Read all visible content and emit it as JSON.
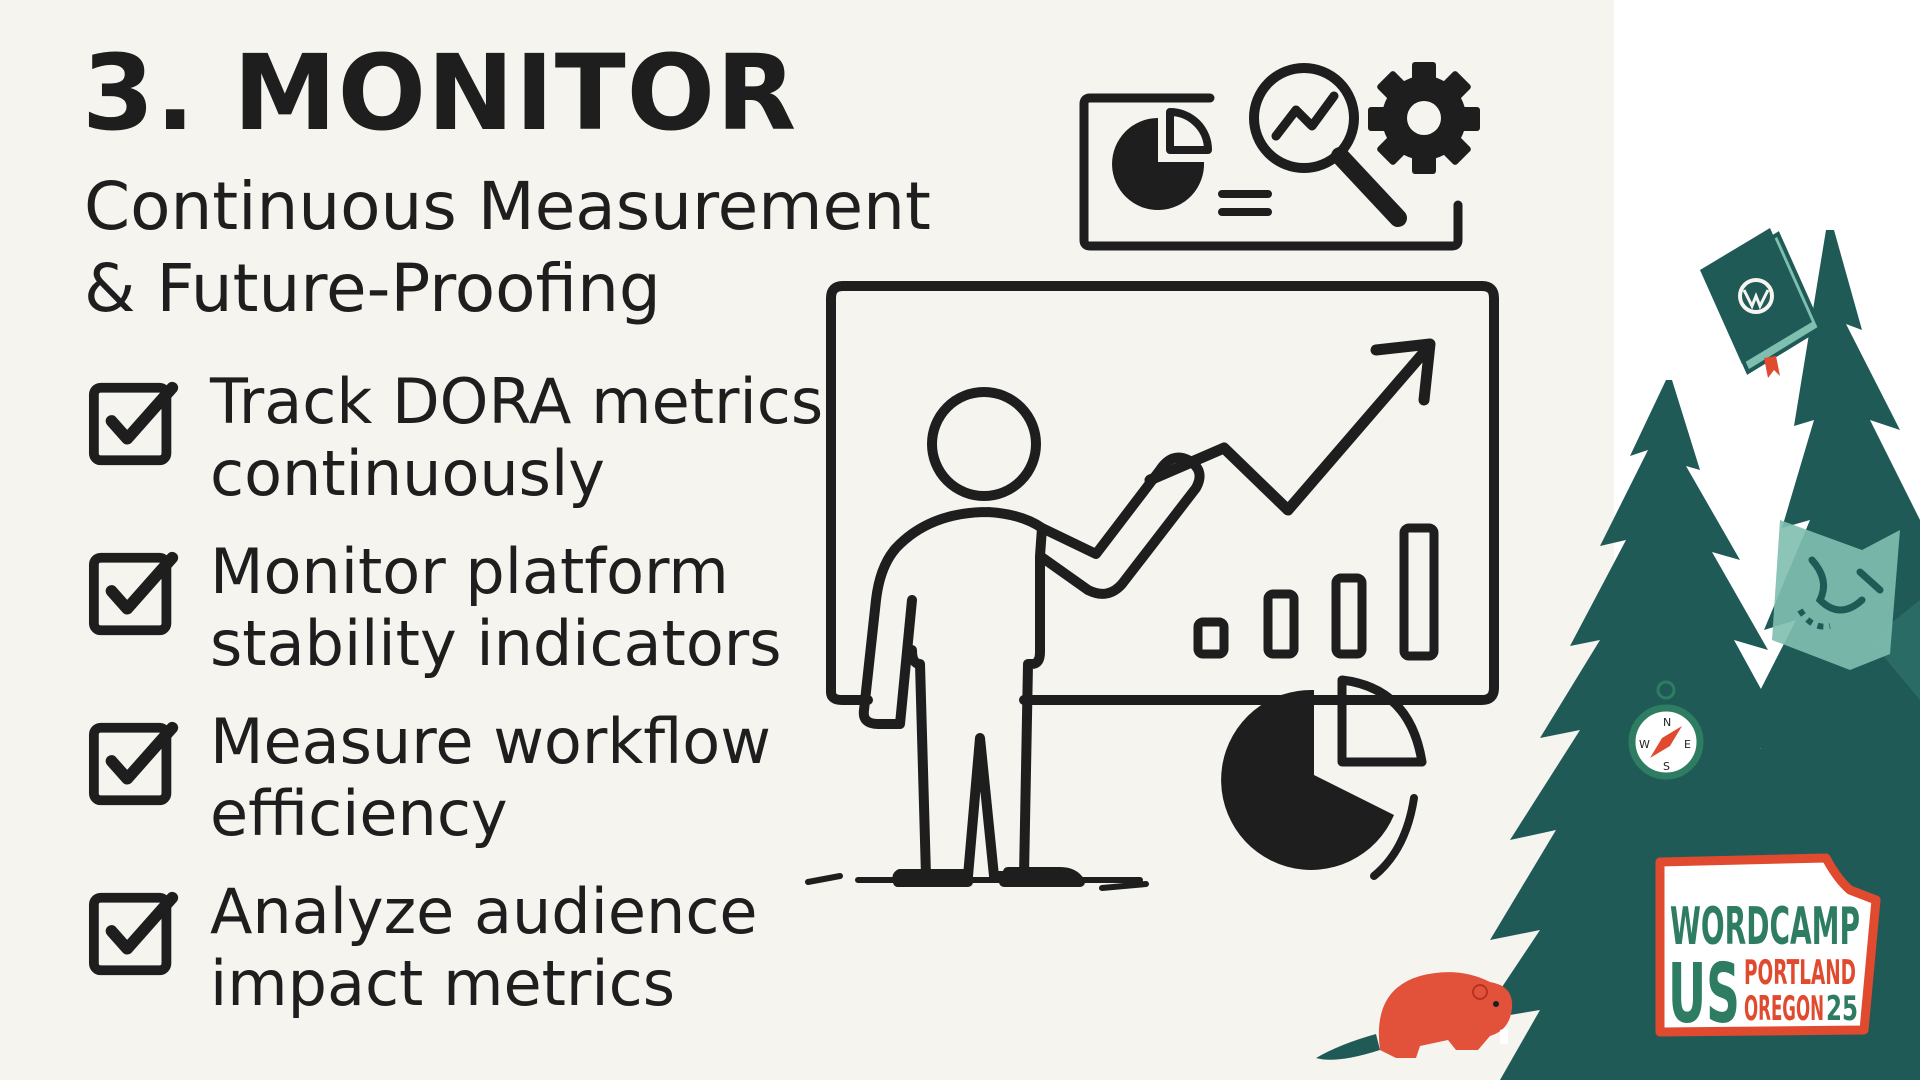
{
  "slide": {
    "title": "3. MONITOR",
    "subtitle_line1": "Continuous Measurement",
    "subtitle_line2": "& Future-Proofing"
  },
  "checklist": [
    {
      "line1": "Track DORA metrics",
      "line2": "continuously"
    },
    {
      "line1": "Monitor platform",
      "line2": "stability indicators"
    },
    {
      "line1": "Measure workflow",
      "line2": "efficiency"
    },
    {
      "line1": "Analyze audience",
      "line2": "impact metrics"
    }
  ],
  "badge": {
    "line1": "WORDCAMP",
    "us": "US",
    "city": "PORTLAND",
    "state": "OREGON",
    "year": "25"
  },
  "compass": {
    "n": "N",
    "e": "E",
    "s": "S",
    "w": "W"
  },
  "icons": [
    "dashboard-icon",
    "pie-chart-icon",
    "magnifier-trend-icon",
    "gear-icon",
    "presenter-icon",
    "trend-arrow-icon",
    "bar-chart-icon",
    "wordpress-book-icon",
    "compass-icon",
    "map-icon",
    "beaver-icon",
    "fir-tree-icon"
  ],
  "colors": {
    "background": "#f5f4ef",
    "ink": "#1e1e1e",
    "tree_green": "#1f5a57",
    "accent_green": "#2e7d63",
    "badge_red": "#e04a2f",
    "beaver": "#e2513a"
  }
}
